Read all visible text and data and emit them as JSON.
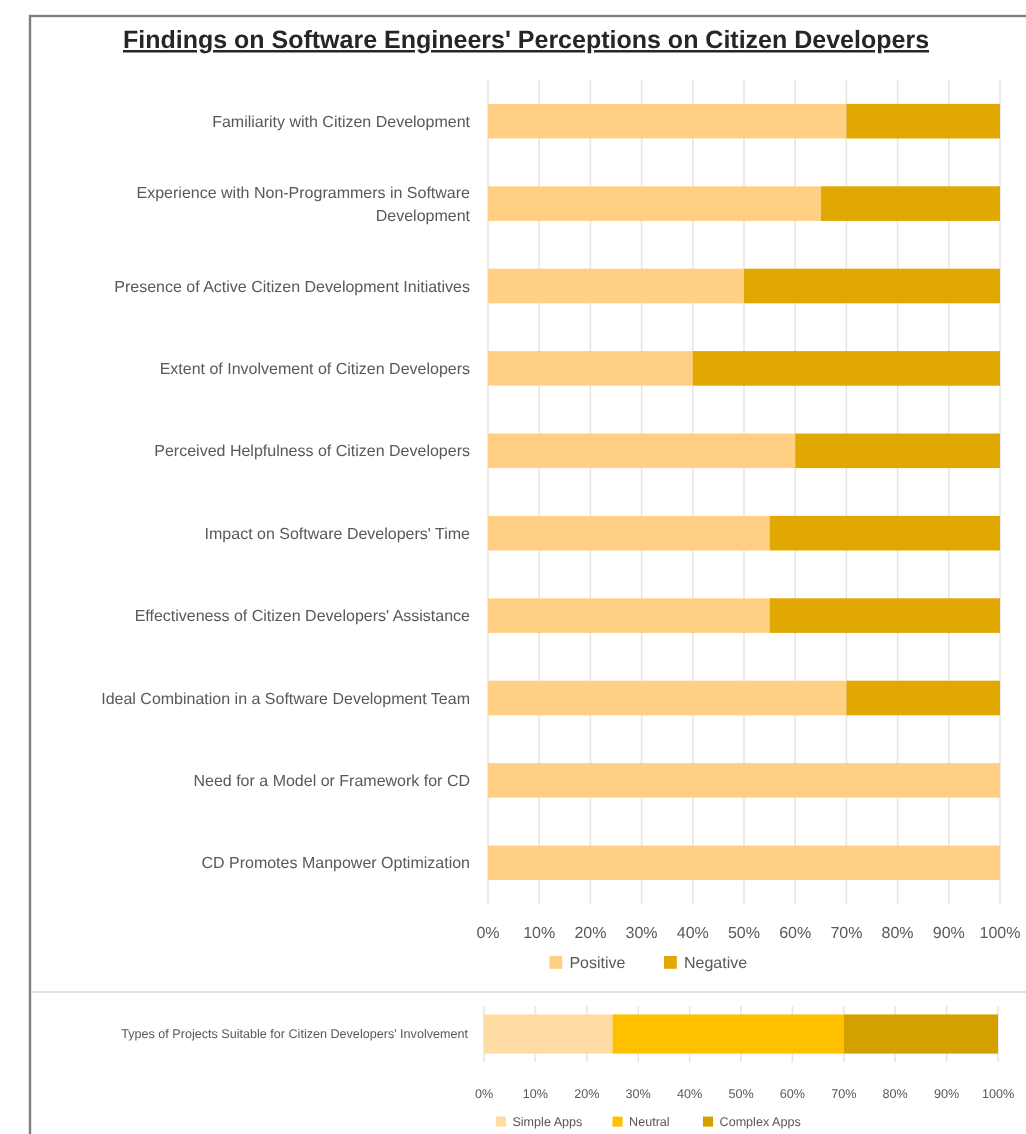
{
  "chart_data": [
    {
      "type": "bar",
      "title": "Findings on Software Engineers' Perceptions on Citizen Developers",
      "orientation": "horizontal",
      "stacked": true,
      "categories": [
        "Familiarity with Citizen Development",
        "Experience with Non-Programmers in Software Development",
        "Presence of Active Citizen Development Initiatives",
        "Extent of Involvement of Citizen Developers",
        "Perceived Helpfulness of Citizen Developers",
        "Impact on Software Developers' Time",
        "Effectiveness of Citizen Developers' Assistance",
        "Ideal Combination in a Software Development Team",
        "Need for a Model or Framework for CD",
        "CD Promotes Manpower Optimization"
      ],
      "series": [
        {
          "name": "Positive",
          "color": "#ffd084",
          "values": [
            70,
            65,
            50,
            40,
            60,
            55,
            55,
            70,
            100,
            100
          ]
        },
        {
          "name": "Negative",
          "color": "#e0a800",
          "values": [
            30,
            35,
            50,
            60,
            40,
            45,
            45,
            30,
            0,
            0
          ]
        }
      ],
      "xlim": [
        0,
        100
      ],
      "xticks": [
        {
          "value": 0,
          "label": "0%"
        },
        {
          "value": 10,
          "label": "10%"
        },
        {
          "value": 20,
          "label": "20%"
        },
        {
          "value": 30,
          "label": "30%"
        },
        {
          "value": 40,
          "label": "40%"
        },
        {
          "value": 50,
          "label": "50%"
        },
        {
          "value": 60,
          "label": "60%"
        },
        {
          "value": 70,
          "label": "70%"
        },
        {
          "value": 80,
          "label": "80%"
        },
        {
          "value": 90,
          "label": "90%"
        },
        {
          "value": 100,
          "label": "100%"
        }
      ],
      "grid": "x",
      "legend": "bottom"
    },
    {
      "type": "bar",
      "orientation": "horizontal",
      "stacked": true,
      "categories": [
        "Types of Projects Suitable for Citizen Developers' Involvement"
      ],
      "series": [
        {
          "name": "Simple Apps",
          "color": "#ffdca4",
          "values": [
            25
          ]
        },
        {
          "name": "Neutral",
          "color": "#ffc000",
          "values": [
            45
          ]
        },
        {
          "name": "Complex Apps",
          "color": "#d4a000",
          "values": [
            30
          ]
        }
      ],
      "xlim": [
        0,
        100
      ],
      "xticks": [
        {
          "value": 0,
          "label": "0%"
        },
        {
          "value": 10,
          "label": "10%"
        },
        {
          "value": 20,
          "label": "20%"
        },
        {
          "value": 30,
          "label": "30%"
        },
        {
          "value": 40,
          "label": "40%"
        },
        {
          "value": 50,
          "label": "50%"
        },
        {
          "value": 60,
          "label": "60%"
        },
        {
          "value": 70,
          "label": "70%"
        },
        {
          "value": 80,
          "label": "80%"
        },
        {
          "value": 90,
          "label": "90%"
        },
        {
          "value": 100,
          "label": "100%"
        }
      ],
      "grid": "x",
      "legend": "bottom"
    }
  ]
}
